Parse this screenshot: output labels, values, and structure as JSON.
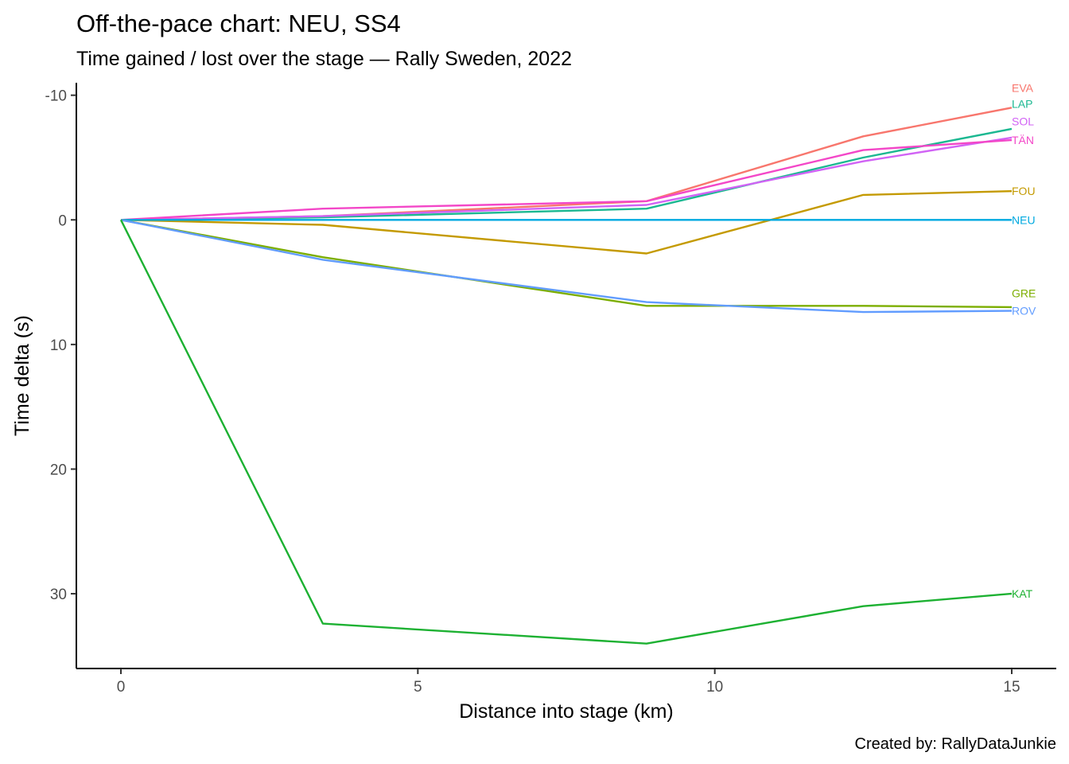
{
  "chart_data": {
    "type": "line",
    "title": "Off-the-pace chart: NEU, SS4",
    "subtitle": "Time gained / lost over the stage — Rally Sweden, 2022",
    "xlabel": "Distance into stage (km)",
    "ylabel": "Time delta (s)",
    "caption": "Created by: RallyDataJunkie",
    "xlim": [
      -0.75,
      15.75
    ],
    "ylim": [
      -11,
      36
    ],
    "y_reversed": true,
    "grid": false,
    "x_ticks": [
      0,
      5,
      10,
      15
    ],
    "x_tick_labels": [
      "0",
      "5",
      "10",
      "15"
    ],
    "y_ticks": [
      -10,
      0,
      10,
      20,
      30
    ],
    "y_tick_labels": [
      "-10",
      "0",
      "10",
      "20",
      "30"
    ],
    "legend": "none (series labels printed at line ends)",
    "x": [
      0,
      3.4,
      8.85,
      12.5,
      15
    ],
    "series": [
      {
        "name": "EVA",
        "color": "#F8766D",
        "values": [
          0,
          -0.3,
          -1.5,
          -6.7,
          -9.0
        ]
      },
      {
        "name": "LAP",
        "color": "#1BB891",
        "values": [
          0,
          -0.2,
          -0.9,
          -5.0,
          -7.3
        ]
      },
      {
        "name": "SOL",
        "color": "#D163F5",
        "values": [
          0,
          -0.3,
          -1.2,
          -4.7,
          -6.6
        ]
      },
      {
        "name": "TÄN",
        "color": "#F347C8",
        "values": [
          0,
          -0.9,
          -1.5,
          -5.6,
          -6.4
        ]
      },
      {
        "name": "FOU",
        "color": "#C49A00",
        "values": [
          0,
          0.4,
          2.7,
          -2.0,
          -2.3
        ]
      },
      {
        "name": "NEU",
        "color": "#00A9E0",
        "values": [
          0,
          0,
          0,
          0,
          0
        ]
      },
      {
        "name": "GRE",
        "color": "#7CAE00",
        "values": [
          0,
          3.0,
          6.9,
          6.9,
          7.0
        ]
      },
      {
        "name": "ROV",
        "color": "#619CFF",
        "values": [
          0,
          3.2,
          6.6,
          7.4,
          7.3
        ]
      },
      {
        "name": "KAT",
        "color": "#1DB132",
        "values": [
          0,
          32.4,
          34.0,
          31.0,
          30.0
        ]
      }
    ],
    "end_label_offsets": [
      {
        "name": "EVA",
        "label_y": -10.6
      },
      {
        "name": "LAP",
        "label_y": -9.3
      },
      {
        "name": "SOL",
        "label_y": -7.9
      },
      {
        "name": "TÄN",
        "label_y": -6.4
      },
      {
        "name": "FOU",
        "label_y": -2.3
      },
      {
        "name": "NEU",
        "label_y": 0
      },
      {
        "name": "GRE",
        "label_y": 5.9
      },
      {
        "name": "ROV",
        "label_y": 7.3
      },
      {
        "name": "KAT",
        "label_y": 30.0
      }
    ]
  }
}
